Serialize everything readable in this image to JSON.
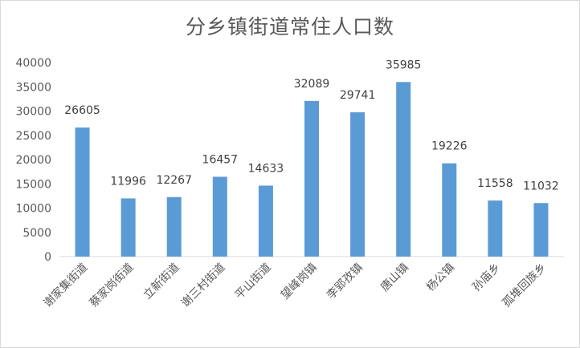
{
  "chart_data": {
    "type": "bar",
    "title": "分乡镇街道常住人口数",
    "xlabel": "",
    "ylabel": "",
    "categories": [
      "谢家集街道",
      "蔡家岗街道",
      "立新街道",
      "谢三村街道",
      "平山街道",
      "望峰岗镇",
      "李郢孜镇",
      "唐山镇",
      "杨公镇",
      "孙庙乡",
      "孤堆回族乡"
    ],
    "values": [
      26605,
      11996,
      12267,
      16457,
      14633,
      32089,
      29741,
      35985,
      19226,
      11558,
      11032
    ],
    "data_labels": [
      "26605",
      "11996",
      "12267",
      "16457",
      "14633",
      "32089",
      "29741",
      "35985",
      "19226",
      "11558",
      "11032"
    ],
    "ylim": [
      0,
      40000
    ],
    "yticks": [
      0,
      5000,
      10000,
      15000,
      20000,
      25000,
      30000,
      35000,
      40000
    ],
    "ytick_labels": [
      "0",
      "5000",
      "10000",
      "15000",
      "20000",
      "25000",
      "30000",
      "35000",
      "40000"
    ],
    "grid": false,
    "legend": "none",
    "colors": {
      "bar": "#5b9bd5",
      "axis": "#d9d9d9",
      "text": "#595959"
    }
  }
}
